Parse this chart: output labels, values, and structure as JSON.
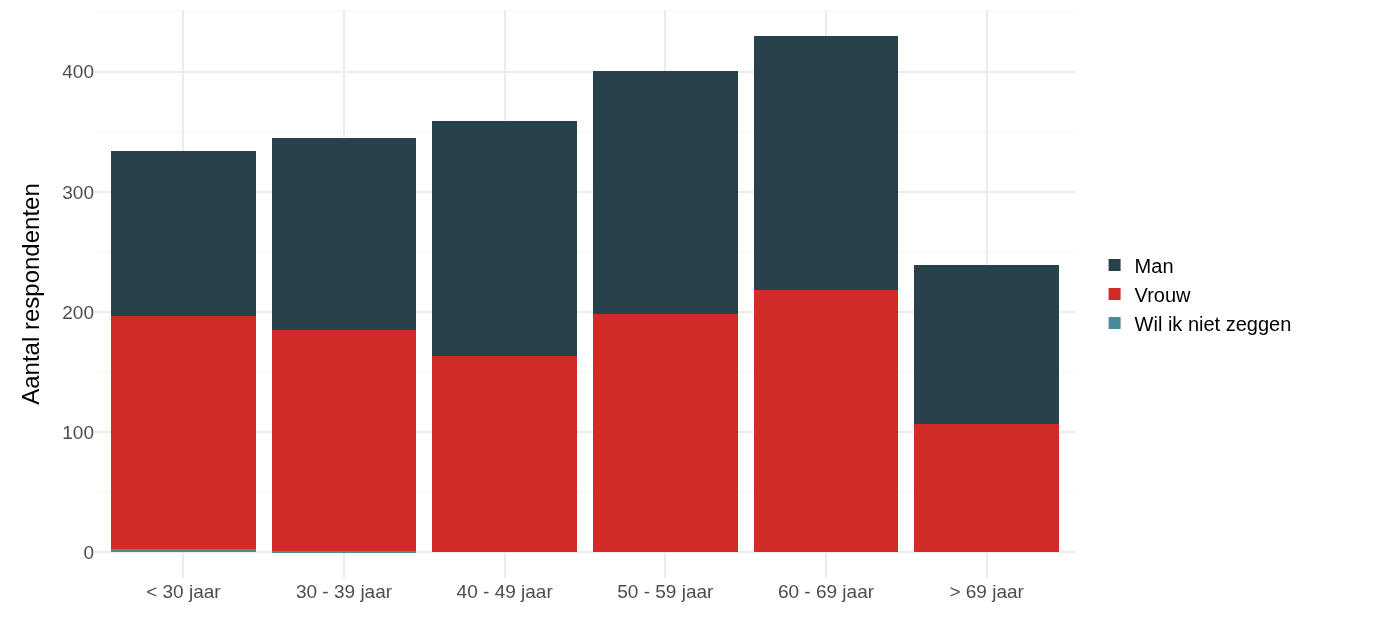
{
  "chart_data": {
    "type": "bar",
    "stacked": true,
    "ylabel": "Aantal respondenten",
    "categories": [
      "< 30 jaar",
      "30 - 39 jaar",
      "40 - 49 jaar",
      "50 - 59 jaar",
      "60 - 69 jaar",
      "> 69 jaar"
    ],
    "series": [
      {
        "name": "Wil ik niet zeggen",
        "color": "#4a8b99",
        "values": [
          3,
          1,
          0,
          0,
          0,
          0
        ]
      },
      {
        "name": "Vrouw",
        "color": "#d12b28",
        "values": [
          194,
          184,
          163,
          198,
          218,
          107
        ]
      },
      {
        "name": "Man",
        "color": "#27424a",
        "values": [
          137,
          160,
          196,
          203,
          212,
          132
        ]
      }
    ],
    "ylim": [
      -21.5,
      451.5
    ],
    "yticks": [
      0,
      100,
      200,
      300,
      400
    ],
    "grid": true,
    "legend": "right"
  }
}
